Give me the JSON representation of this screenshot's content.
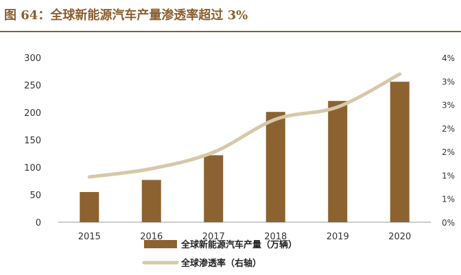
{
  "header": {
    "title": "图 64：全球新能源汽车产量渗透率超过 3%"
  },
  "chart_data": {
    "type": "bar+line",
    "categories": [
      "2015",
      "2016",
      "2017",
      "2018",
      "2019",
      "2020"
    ],
    "series": [
      {
        "name": "全球新能源汽车产量（万辆）",
        "type": "bar",
        "axis": "left",
        "values": [
          55,
          77,
          122,
          201,
          221,
          256
        ],
        "color": "#8B6230"
      },
      {
        "name": "全球渗透率（右轴）",
        "type": "line",
        "axis": "right",
        "values": [
          1.1,
          1.3,
          1.7,
          2.5,
          2.8,
          3.6
        ],
        "color": "#D6C8A8"
      }
    ],
    "left_axis": {
      "ticks": [
        "0",
        "50",
        "100",
        "150",
        "200",
        "250",
        "300"
      ],
      "ylim": [
        0,
        300
      ]
    },
    "right_axis": {
      "ticks": [
        "0%",
        "1%",
        "1%",
        "2%",
        "2%",
        "3%",
        "3%",
        "4%"
      ],
      "ylim": [
        0,
        4
      ]
    },
    "legend_position": "bottom-center",
    "grid": false
  }
}
